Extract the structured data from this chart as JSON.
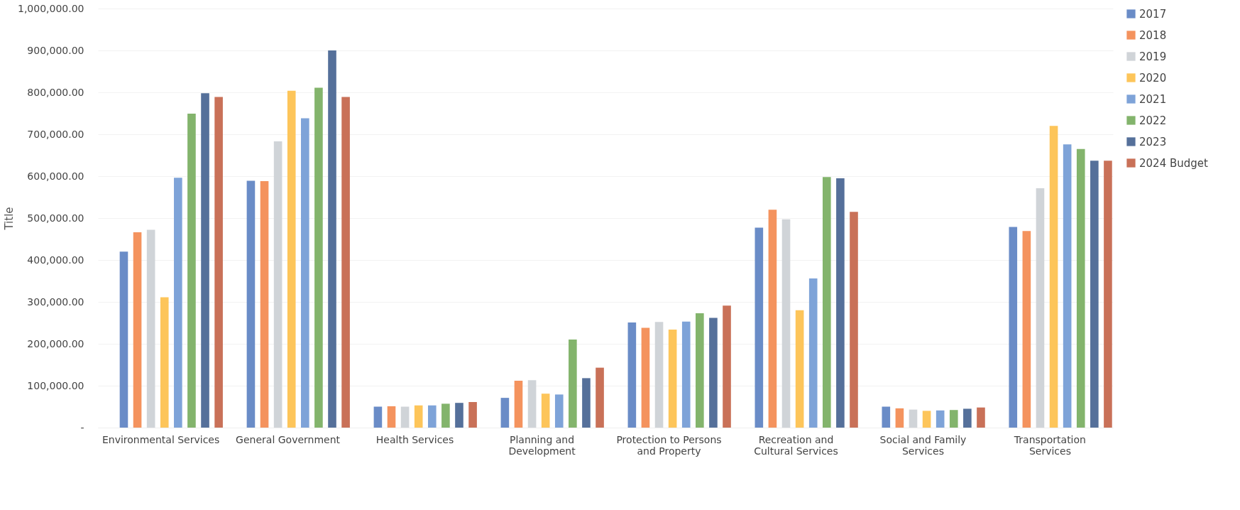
{
  "chart_data": {
    "type": "bar",
    "ylabel": "Title",
    "categories": [
      "Environmental Services",
      "General Government",
      "Health Services",
      "Planning and Development",
      "Protection to Persons and Property",
      "Recreation and Cultural Services",
      "Social and Family Services",
      "Transportation Services"
    ],
    "series": [
      {
        "name": "2017",
        "color": "#6a8cc7",
        "values": [
          420000,
          589000,
          50000,
          71000,
          251000,
          477000,
          50000,
          479000
        ]
      },
      {
        "name": "2018",
        "color": "#f4935e",
        "values": [
          466000,
          588000,
          51000,
          112000,
          238000,
          520000,
          46000,
          469000
        ]
      },
      {
        "name": "2019",
        "color": "#d0d4d8",
        "values": [
          472000,
          683000,
          50000,
          113000,
          252000,
          497000,
          43000,
          571000
        ]
      },
      {
        "name": "2020",
        "color": "#fdc55a",
        "values": [
          311000,
          804000,
          53000,
          81000,
          234000,
          280000,
          40000,
          720000
        ]
      },
      {
        "name": "2021",
        "color": "#7ea3d8",
        "values": [
          596000,
          738000,
          53000,
          79000,
          253000,
          356000,
          41000,
          676000
        ]
      },
      {
        "name": "2022",
        "color": "#83b46c",
        "values": [
          749000,
          811000,
          57000,
          210000,
          273000,
          598000,
          42000,
          665000
        ]
      },
      {
        "name": "2023",
        "color": "#55709a",
        "values": [
          798000,
          900000,
          59000,
          118000,
          262000,
          595000,
          45000,
          637000
        ]
      },
      {
        "name": "2024 Budget",
        "color": "#c97158",
        "values": [
          789000,
          789000,
          61000,
          143000,
          291000,
          515000,
          48000,
          637000
        ]
      }
    ],
    "ylim": [
      0,
      1000000
    ],
    "yticks": [
      {
        "value": 0,
        "label": "-"
      },
      {
        "value": 100000,
        "label": "100,000.00"
      },
      {
        "value": 200000,
        "label": "200,000.00"
      },
      {
        "value": 300000,
        "label": "300,000.00"
      },
      {
        "value": 400000,
        "label": "400,000.00"
      },
      {
        "value": 500000,
        "label": "500,000.00"
      },
      {
        "value": 600000,
        "label": "600,000.00"
      },
      {
        "value": 700000,
        "label": "700,000.00"
      },
      {
        "value": 800000,
        "label": "800,000.00"
      },
      {
        "value": 900000,
        "label": "900,000.00"
      },
      {
        "value": 1000000,
        "label": "1,000,000.00"
      }
    ],
    "grid": "y",
    "legend": "right"
  }
}
